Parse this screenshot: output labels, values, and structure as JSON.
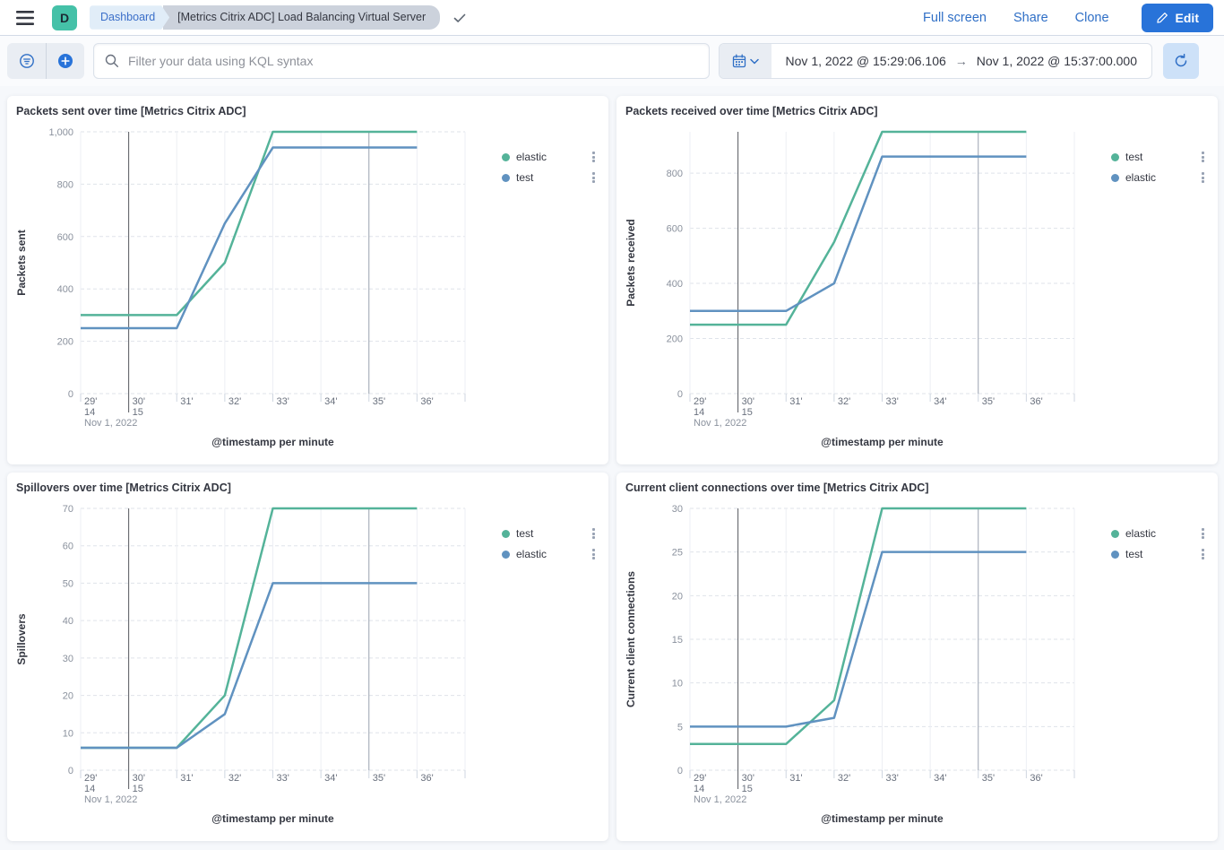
{
  "header": {
    "app_initial": "D",
    "breadcrumb_root": "Dashboard",
    "breadcrumb_current": "[Metrics Citrix ADC] Load Balancing Virtual Server",
    "action_full_screen": "Full screen",
    "action_share": "Share",
    "action_clone": "Clone",
    "edit_label": "Edit"
  },
  "filter_bar": {
    "search_placeholder": "Filter your data using KQL syntax",
    "date_start": "Nov 1, 2022 @ 15:29:06.106",
    "date_end": "Nov 1, 2022 @ 15:37:00.000"
  },
  "colors": {
    "green": "#54B399",
    "blue": "#6092C0",
    "link_blue": "#2f6fc6",
    "edit_button_blue": "#2873d9",
    "avatar_teal": "#45c1a8",
    "hour_line": "#54575e",
    "minor_line": "#9aa2af"
  },
  "chart_data": [
    {
      "type": "line",
      "title": "Packets sent over time [Metrics Citrix ADC]",
      "ylabel": "Packets sent",
      "xlabel": "@timestamp per minute",
      "x": [
        29,
        30,
        31,
        32,
        33,
        34,
        35,
        36
      ],
      "x_tick_labels": [
        "29'",
        "30'",
        "31'",
        "32'",
        "33'",
        "34'",
        "35'",
        "36'"
      ],
      "x_sub_labels": [
        "14",
        "15"
      ],
      "x_date_label": "Nov 1, 2022",
      "xlim": [
        29,
        37
      ],
      "ylim": [
        0,
        1000
      ],
      "y_ticks": [
        0,
        200,
        400,
        600,
        800,
        1000
      ],
      "y_tick_labels": [
        "0",
        "200",
        "400",
        "600",
        "800",
        "1,000"
      ],
      "grid": true,
      "legend_position": "right",
      "series": [
        {
          "name": "elastic",
          "color": "green",
          "values": [
            300,
            300,
            300,
            500,
            1000,
            1000,
            1000,
            1000
          ]
        },
        {
          "name": "test",
          "color": "blue",
          "values": [
            250,
            250,
            250,
            650,
            940,
            940,
            940,
            940
          ]
        }
      ]
    },
    {
      "type": "line",
      "title": "Packets received over time [Metrics Citrix ADC]",
      "ylabel": "Packets received",
      "xlabel": "@timestamp per minute",
      "x": [
        29,
        30,
        31,
        32,
        33,
        34,
        35,
        36
      ],
      "x_tick_labels": [
        "29'",
        "30'",
        "31'",
        "32'",
        "33'",
        "34'",
        "35'",
        "36'"
      ],
      "x_sub_labels": [
        "14",
        "15"
      ],
      "x_date_label": "Nov 1, 2022",
      "xlim": [
        29,
        37
      ],
      "ylim": [
        0,
        950
      ],
      "y_ticks": [
        0,
        200,
        400,
        600,
        800
      ],
      "y_tick_labels": [
        "0",
        "200",
        "400",
        "600",
        "800"
      ],
      "grid": true,
      "legend_position": "right",
      "series": [
        {
          "name": "test",
          "color": "green",
          "values": [
            250,
            250,
            250,
            550,
            950,
            950,
            950,
            950
          ]
        },
        {
          "name": "elastic",
          "color": "blue",
          "values": [
            300,
            300,
            300,
            400,
            860,
            860,
            860,
            860
          ]
        }
      ]
    },
    {
      "type": "line",
      "title": "Spillovers over time [Metrics Citrix ADC]",
      "ylabel": "Spillovers",
      "xlabel": "@timestamp per minute",
      "x": [
        29,
        30,
        31,
        32,
        33,
        34,
        35,
        36
      ],
      "x_tick_labels": [
        "29'",
        "30'",
        "31'",
        "32'",
        "33'",
        "34'",
        "35'",
        "36'"
      ],
      "x_sub_labels": [
        "14",
        "15"
      ],
      "x_date_label": "Nov 1, 2022",
      "xlim": [
        29,
        37
      ],
      "ylim": [
        0,
        70
      ],
      "y_ticks": [
        0,
        10,
        20,
        30,
        40,
        50,
        60,
        70
      ],
      "y_tick_labels": [
        "0",
        "10",
        "20",
        "30",
        "40",
        "50",
        "60",
        "70"
      ],
      "grid": true,
      "legend_position": "right",
      "series": [
        {
          "name": "test",
          "color": "green",
          "values": [
            6,
            6,
            6,
            20,
            70,
            70,
            70,
            70
          ]
        },
        {
          "name": "elastic",
          "color": "blue",
          "values": [
            6,
            6,
            6,
            15,
            50,
            50,
            50,
            50
          ]
        }
      ]
    },
    {
      "type": "line",
      "title": "Current client connections over time [Metrics Citrix ADC]",
      "ylabel": "Current client connections",
      "xlabel": "@timestamp per minute",
      "x": [
        29,
        30,
        31,
        32,
        33,
        34,
        35,
        36
      ],
      "x_tick_labels": [
        "29'",
        "30'",
        "31'",
        "32'",
        "33'",
        "34'",
        "35'",
        "36'"
      ],
      "x_sub_labels": [
        "14",
        "15"
      ],
      "x_date_label": "Nov 1, 2022",
      "xlim": [
        29,
        37
      ],
      "ylim": [
        0,
        30
      ],
      "y_ticks": [
        0,
        5,
        10,
        15,
        20,
        25,
        30
      ],
      "y_tick_labels": [
        "0",
        "5",
        "10",
        "15",
        "20",
        "25",
        "30"
      ],
      "grid": true,
      "legend_position": "right",
      "series": [
        {
          "name": "elastic",
          "color": "green",
          "values": [
            3,
            3,
            3,
            8,
            30,
            30,
            30,
            30
          ]
        },
        {
          "name": "test",
          "color": "blue",
          "values": [
            5,
            5,
            5,
            6,
            25,
            25,
            25,
            25
          ]
        }
      ]
    }
  ]
}
